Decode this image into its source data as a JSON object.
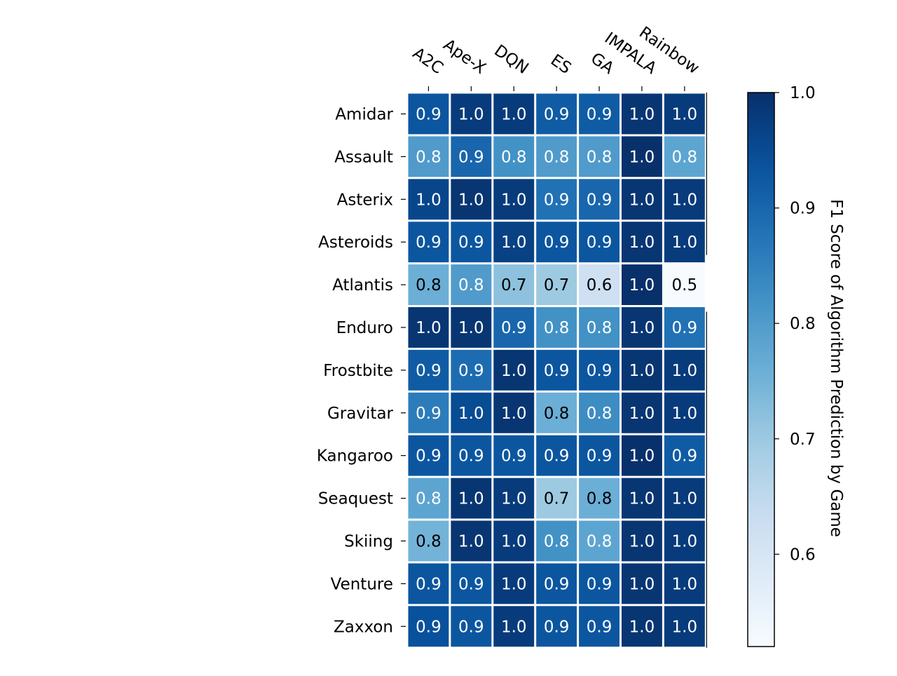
{
  "chart_data": {
    "type": "heatmap",
    "title": "",
    "xlabel": "",
    "ylabel": "",
    "columns": [
      "A2C",
      "Ape-X",
      "DQN",
      "ES",
      "GA",
      "IMPALA",
      "Rainbow"
    ],
    "rows": [
      "Amidar",
      "Assault",
      "Asterix",
      "Asteroids",
      "Atlantis",
      "Enduro",
      "Frostbite",
      "Gravitar",
      "Kangaroo",
      "Seaquest",
      "Skiing",
      "Venture",
      "Zaxxon"
    ],
    "values": [
      [
        0.93,
        0.98,
        0.98,
        0.92,
        0.92,
        0.99,
        0.98
      ],
      [
        0.8,
        0.9,
        0.82,
        0.8,
        0.8,
        1.0,
        0.78
      ],
      [
        0.96,
        0.99,
        0.98,
        0.88,
        0.9,
        0.99,
        0.98
      ],
      [
        0.93,
        0.93,
        0.97,
        0.93,
        0.93,
        0.99,
        0.98
      ],
      [
        0.76,
        0.8,
        0.72,
        0.7,
        0.62,
        1.0,
        0.52
      ],
      [
        0.99,
        0.99,
        0.9,
        0.82,
        0.82,
        0.99,
        0.88
      ],
      [
        0.92,
        0.89,
        0.99,
        0.93,
        0.93,
        0.99,
        0.98
      ],
      [
        0.86,
        0.95,
        0.99,
        0.76,
        0.83,
        0.99,
        0.98
      ],
      [
        0.93,
        0.93,
        0.93,
        0.93,
        0.93,
        1.0,
        0.92
      ],
      [
        0.78,
        0.99,
        0.98,
        0.7,
        0.76,
        0.99,
        0.98
      ],
      [
        0.75,
        0.99,
        0.98,
        0.82,
        0.78,
        0.99,
        0.98
      ],
      [
        0.93,
        0.93,
        0.98,
        0.93,
        0.93,
        0.99,
        0.98
      ],
      [
        0.94,
        0.93,
        0.98,
        0.93,
        0.93,
        0.99,
        0.98
      ]
    ],
    "labels": [
      [
        "0.9",
        "1.0",
        "1.0",
        "0.9",
        "0.9",
        "1.0",
        "1.0"
      ],
      [
        "0.8",
        "0.9",
        "0.8",
        "0.8",
        "0.8",
        "1.0",
        "0.8"
      ],
      [
        "1.0",
        "1.0",
        "1.0",
        "0.9",
        "0.9",
        "1.0",
        "1.0"
      ],
      [
        "0.9",
        "0.9",
        "1.0",
        "0.9",
        "0.9",
        "1.0",
        "1.0"
      ],
      [
        "0.8",
        "0.8",
        "0.7",
        "0.7",
        "0.6",
        "1.0",
        "0.5"
      ],
      [
        "1.0",
        "1.0",
        "0.9",
        "0.8",
        "0.8",
        "1.0",
        "0.9"
      ],
      [
        "0.9",
        "0.9",
        "1.0",
        "0.9",
        "0.9",
        "1.0",
        "1.0"
      ],
      [
        "0.9",
        "1.0",
        "1.0",
        "0.8",
        "0.8",
        "1.0",
        "1.0"
      ],
      [
        "0.9",
        "0.9",
        "0.9",
        "0.9",
        "0.9",
        "1.0",
        "0.9"
      ],
      [
        "0.8",
        "1.0",
        "1.0",
        "0.7",
        "0.8",
        "1.0",
        "1.0"
      ],
      [
        "0.8",
        "1.0",
        "1.0",
        "0.8",
        "0.8",
        "1.0",
        "1.0"
      ],
      [
        "0.9",
        "0.9",
        "1.0",
        "0.9",
        "0.9",
        "1.0",
        "1.0"
      ],
      [
        "0.9",
        "0.9",
        "1.0",
        "0.9",
        "0.9",
        "1.0",
        "1.0"
      ]
    ],
    "colormap": "Blues",
    "color_min": "#f7fbff",
    "color_max": "#08306b",
    "colorbar": {
      "label": "F1 Score of Algorithm Prediction by Game",
      "range": [
        0.52,
        1.0
      ],
      "ticks": [
        0.6,
        0.7,
        0.8,
        0.9,
        1.0
      ],
      "tick_labels": [
        "0.6",
        "0.7",
        "0.8",
        "0.9",
        "1.0"
      ]
    },
    "grid": false,
    "legend": "none",
    "column_label_position": "top"
  }
}
